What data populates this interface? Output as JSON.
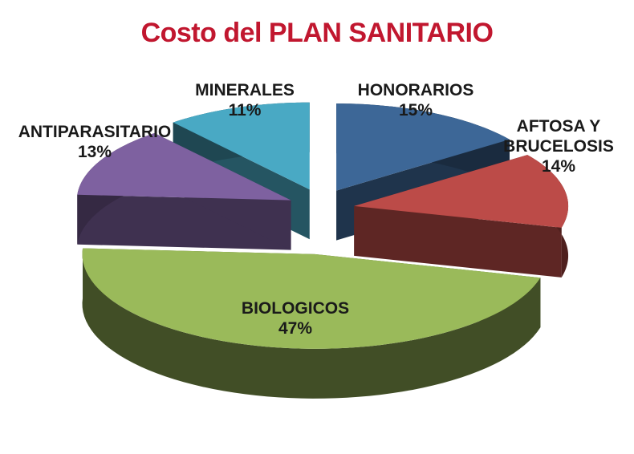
{
  "chart_data": {
    "type": "pie",
    "style": "3d-exploded",
    "title": "Costo del PLAN SANITARIO",
    "slices": [
      {
        "name": "HONORARIOS",
        "value": 15,
        "label": "15%",
        "color": "#3d6797"
      },
      {
        "name": "AFTOSA Y\nBRUCELOSIS",
        "value": 14,
        "label": "14%",
        "color": "#bc4b48"
      },
      {
        "name": "BIOLOGICOS",
        "value": 47,
        "label": "47%",
        "color": "#9aba5a"
      },
      {
        "name": "ANTIPARASITARIO",
        "value": 13,
        "label": "13%",
        "color": "#7e61a0"
      },
      {
        "name": "MINERALES",
        "value": 11,
        "label": "11%",
        "color": "#49a9c4"
      }
    ]
  }
}
